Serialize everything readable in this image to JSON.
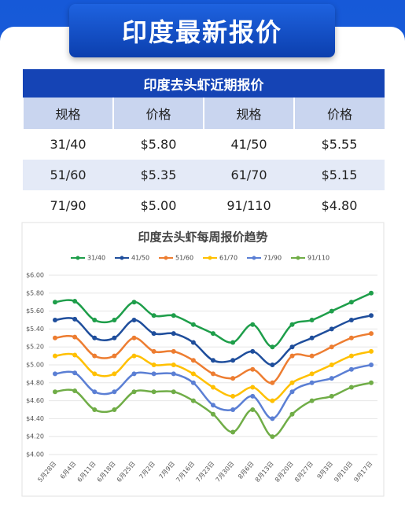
{
  "header": {
    "title": "印度最新报价"
  },
  "table": {
    "title": "印度去头虾近期报价",
    "columns": [
      "规格",
      "价格",
      "规格",
      "价格"
    ],
    "rows": [
      [
        "31/40",
        "$5.80",
        "41/50",
        "$5.55"
      ],
      [
        "51/60",
        "$5.35",
        "61/70",
        "$5.15"
      ],
      [
        "71/90",
        "$5.00",
        "91/110",
        "$4.80"
      ]
    ]
  },
  "chart_data": {
    "type": "line",
    "title": "印度去头虾每周报价趋势",
    "categories": [
      "5月28日",
      "6月4日",
      "6月11日",
      "6月18日",
      "6月25日",
      "7月2日",
      "7月9日",
      "7月16日",
      "7月23日",
      "7月30日",
      "8月6日",
      "8月13日",
      "8月20日",
      "8月27日",
      "9月3日",
      "9月10日",
      "9月17日"
    ],
    "series": [
      {
        "name": "31/40",
        "color": "#1e9e4a",
        "values": [
          5.7,
          5.71,
          5.5,
          5.5,
          5.7,
          5.55,
          5.55,
          5.45,
          5.35,
          5.25,
          5.45,
          5.2,
          5.45,
          5.5,
          5.6,
          5.7,
          5.8
        ]
      },
      {
        "name": "41/50",
        "color": "#1f4e9c",
        "values": [
          5.5,
          5.51,
          5.3,
          5.3,
          5.5,
          5.35,
          5.35,
          5.25,
          5.05,
          5.05,
          5.15,
          5.0,
          5.2,
          5.3,
          5.4,
          5.5,
          5.55
        ]
      },
      {
        "name": "51/60",
        "color": "#ed7d31",
        "values": [
          5.3,
          5.31,
          5.1,
          5.1,
          5.3,
          5.15,
          5.15,
          5.05,
          4.9,
          4.85,
          4.95,
          4.8,
          5.1,
          5.1,
          5.2,
          5.3,
          5.35
        ]
      },
      {
        "name": "61/70",
        "color": "#ffc000",
        "values": [
          5.1,
          5.11,
          4.9,
          4.9,
          5.1,
          5.0,
          5.0,
          4.9,
          4.75,
          4.65,
          4.75,
          4.6,
          4.8,
          4.9,
          5.0,
          5.1,
          5.15
        ]
      },
      {
        "name": "71/90",
        "color": "#5b7fd4",
        "values": [
          4.9,
          4.91,
          4.7,
          4.7,
          4.9,
          4.9,
          4.9,
          4.8,
          4.55,
          4.5,
          4.65,
          4.4,
          4.7,
          4.8,
          4.85,
          4.95,
          5.0
        ]
      },
      {
        "name": "91/110",
        "color": "#70ad47",
        "values": [
          4.7,
          4.71,
          4.5,
          4.5,
          4.7,
          4.7,
          4.7,
          4.6,
          4.45,
          4.25,
          4.5,
          4.2,
          4.45,
          4.6,
          4.65,
          4.75,
          4.8
        ]
      }
    ],
    "ylim": [
      4,
      6
    ],
    "yticks": [
      {
        "value": 4,
        "label": "$4.00"
      },
      {
        "value": 4.2,
        "label": "$4.20"
      },
      {
        "value": 4.4,
        "label": "$4.40"
      },
      {
        "value": 4.6,
        "label": "$4.60"
      },
      {
        "value": 4.8,
        "label": "$4.80"
      },
      {
        "value": 5,
        "label": "$5.00"
      },
      {
        "value": 5.2,
        "label": "$5.20"
      },
      {
        "value": 5.4,
        "label": "$5.40"
      },
      {
        "value": 5.6,
        "label": "$5.60"
      },
      {
        "value": 5.8,
        "label": "$5.80"
      },
      {
        "value": 6,
        "label": "$6.00"
      }
    ],
    "grid": true,
    "legend": "top"
  }
}
